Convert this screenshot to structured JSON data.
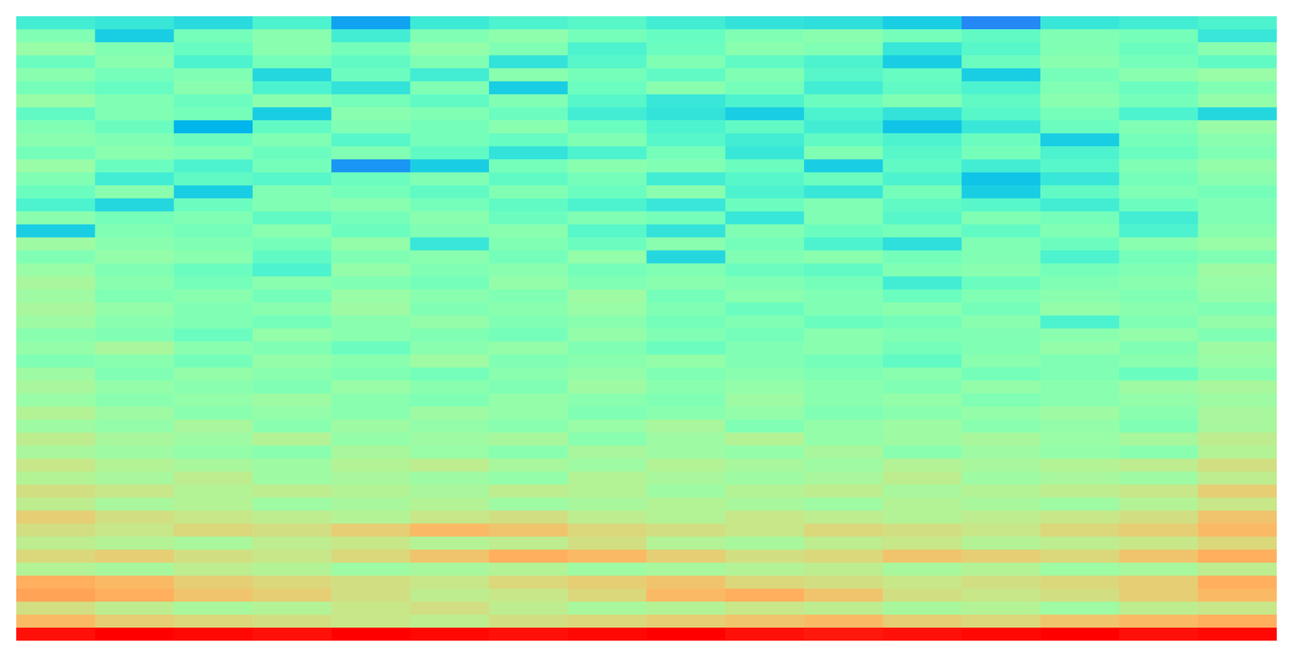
{
  "chart_data": {
    "type": "heatmap",
    "tick_labels": false,
    "zlim": [
      0,
      1
    ],
    "cells": [
      [
        0.38,
        0.36,
        0.33,
        0.4,
        0.22,
        0.37,
        0.4,
        0.42,
        0.38,
        0.35,
        0.34,
        0.3,
        0.18,
        0.36,
        0.38,
        0.4
      ],
      [
        0.5,
        0.3,
        0.48,
        0.52,
        0.38,
        0.5,
        0.53,
        0.48,
        0.45,
        0.5,
        0.52,
        0.48,
        0.44,
        0.5,
        0.48,
        0.36
      ],
      [
        0.55,
        0.5,
        0.45,
        0.52,
        0.48,
        0.54,
        0.5,
        0.4,
        0.46,
        0.52,
        0.5,
        0.36,
        0.42,
        0.5,
        0.46,
        0.52
      ],
      [
        0.46,
        0.52,
        0.4,
        0.48,
        0.44,
        0.5,
        0.35,
        0.42,
        0.5,
        0.44,
        0.4,
        0.3,
        0.46,
        0.52,
        0.48,
        0.44
      ],
      [
        0.52,
        0.48,
        0.5,
        0.32,
        0.46,
        0.38,
        0.52,
        0.48,
        0.44,
        0.5,
        0.42,
        0.45,
        0.3,
        0.48,
        0.52,
        0.55
      ],
      [
        0.48,
        0.45,
        0.52,
        0.4,
        0.35,
        0.5,
        0.3,
        0.46,
        0.52,
        0.48,
        0.38,
        0.44,
        0.4,
        0.5,
        0.46,
        0.5
      ],
      [
        0.55,
        0.5,
        0.46,
        0.52,
        0.48,
        0.44,
        0.5,
        0.42,
        0.36,
        0.4,
        0.46,
        0.5,
        0.44,
        0.52,
        0.48,
        0.54
      ],
      [
        0.44,
        0.5,
        0.48,
        0.3,
        0.52,
        0.5,
        0.46,
        0.38,
        0.35,
        0.3,
        0.4,
        0.35,
        0.42,
        0.48,
        0.4,
        0.32
      ],
      [
        0.5,
        0.46,
        0.25,
        0.44,
        0.5,
        0.48,
        0.52,
        0.46,
        0.4,
        0.44,
        0.38,
        0.28,
        0.36,
        0.46,
        0.5,
        0.55
      ],
      [
        0.52,
        0.5,
        0.46,
        0.5,
        0.42,
        0.48,
        0.45,
        0.5,
        0.42,
        0.38,
        0.44,
        0.4,
        0.46,
        0.3,
        0.48,
        0.52
      ],
      [
        0.48,
        0.52,
        0.5,
        0.46,
        0.5,
        0.44,
        0.35,
        0.4,
        0.48,
        0.36,
        0.5,
        0.42,
        0.48,
        0.4,
        0.46,
        0.5
      ],
      [
        0.55,
        0.46,
        0.4,
        0.48,
        0.2,
        0.3,
        0.48,
        0.52,
        0.5,
        0.46,
        0.3,
        0.44,
        0.38,
        0.42,
        0.5,
        0.54
      ],
      [
        0.5,
        0.38,
        0.44,
        0.42,
        0.46,
        0.5,
        0.44,
        0.48,
        0.38,
        0.42,
        0.46,
        0.4,
        0.28,
        0.36,
        0.48,
        0.52
      ],
      [
        0.46,
        0.52,
        0.3,
        0.5,
        0.48,
        0.44,
        0.5,
        0.46,
        0.52,
        0.4,
        0.36,
        0.48,
        0.3,
        0.44,
        0.5,
        0.48
      ],
      [
        0.4,
        0.32,
        0.46,
        0.5,
        0.52,
        0.48,
        0.44,
        0.4,
        0.36,
        0.46,
        0.5,
        0.44,
        0.42,
        0.38,
        0.46,
        0.5
      ],
      [
        0.52,
        0.48,
        0.5,
        0.44,
        0.48,
        0.52,
        0.46,
        0.5,
        0.48,
        0.36,
        0.5,
        0.42,
        0.5,
        0.48,
        0.38,
        0.5
      ],
      [
        0.3,
        0.5,
        0.48,
        0.52,
        0.46,
        0.5,
        0.52,
        0.42,
        0.35,
        0.5,
        0.46,
        0.48,
        0.44,
        0.5,
        0.4,
        0.52
      ],
      [
        0.56,
        0.52,
        0.5,
        0.48,
        0.54,
        0.36,
        0.5,
        0.46,
        0.52,
        0.48,
        0.4,
        0.34,
        0.5,
        0.46,
        0.52,
        0.55
      ],
      [
        0.5,
        0.54,
        0.52,
        0.44,
        0.5,
        0.52,
        0.48,
        0.54,
        0.32,
        0.5,
        0.52,
        0.48,
        0.5,
        0.4,
        0.48,
        0.5
      ],
      [
        0.55,
        0.5,
        0.46,
        0.4,
        0.54,
        0.5,
        0.52,
        0.48,
        0.5,
        0.46,
        0.44,
        0.5,
        0.52,
        0.48,
        0.5,
        0.56
      ],
      [
        0.58,
        0.52,
        0.48,
        0.52,
        0.5,
        0.48,
        0.54,
        0.5,
        0.52,
        0.5,
        0.48,
        0.38,
        0.46,
        0.5,
        0.52,
        0.55
      ],
      [
        0.56,
        0.5,
        0.52,
        0.48,
        0.55,
        0.52,
        0.5,
        0.56,
        0.48,
        0.52,
        0.5,
        0.46,
        0.5,
        0.52,
        0.5,
        0.54
      ],
      [
        0.58,
        0.54,
        0.5,
        0.52,
        0.56,
        0.5,
        0.52,
        0.55,
        0.5,
        0.46,
        0.5,
        0.52,
        0.48,
        0.54,
        0.52,
        0.5
      ],
      [
        0.56,
        0.52,
        0.5,
        0.48,
        0.52,
        0.54,
        0.5,
        0.52,
        0.48,
        0.5,
        0.46,
        0.48,
        0.52,
        0.4,
        0.5,
        0.54
      ],
      [
        0.52,
        0.5,
        0.46,
        0.54,
        0.52,
        0.5,
        0.48,
        0.54,
        0.5,
        0.48,
        0.52,
        0.5,
        0.5,
        0.52,
        0.54,
        0.5
      ],
      [
        0.54,
        0.58,
        0.52,
        0.5,
        0.46,
        0.52,
        0.54,
        0.5,
        0.46,
        0.5,
        0.52,
        0.48,
        0.5,
        0.54,
        0.5,
        0.56
      ],
      [
        0.5,
        0.52,
        0.48,
        0.54,
        0.52,
        0.56,
        0.5,
        0.52,
        0.54,
        0.5,
        0.48,
        0.44,
        0.52,
        0.5,
        0.52,
        0.55
      ],
      [
        0.56,
        0.5,
        0.54,
        0.52,
        0.5,
        0.48,
        0.52,
        0.54,
        0.5,
        0.52,
        0.5,
        0.52,
        0.48,
        0.5,
        0.46,
        0.52
      ],
      [
        0.58,
        0.54,
        0.52,
        0.5,
        0.55,
        0.52,
        0.5,
        0.56,
        0.52,
        0.54,
        0.52,
        0.5,
        0.54,
        0.52,
        0.56,
        0.58
      ],
      [
        0.55,
        0.52,
        0.54,
        0.56,
        0.52,
        0.5,
        0.54,
        0.52,
        0.5,
        0.56,
        0.52,
        0.54,
        0.5,
        0.52,
        0.54,
        0.56
      ],
      [
        0.6,
        0.56,
        0.52,
        0.54,
        0.52,
        0.56,
        0.54,
        0.5,
        0.52,
        0.54,
        0.5,
        0.52,
        0.54,
        0.56,
        0.52,
        0.58
      ],
      [
        0.56,
        0.54,
        0.58,
        0.52,
        0.56,
        0.54,
        0.52,
        0.55,
        0.58,
        0.5,
        0.54,
        0.56,
        0.52,
        0.54,
        0.5,
        0.58
      ],
      [
        0.62,
        0.58,
        0.56,
        0.6,
        0.54,
        0.56,
        0.58,
        0.52,
        0.56,
        0.6,
        0.54,
        0.56,
        0.58,
        0.55,
        0.58,
        0.62
      ],
      [
        0.58,
        0.56,
        0.54,
        0.52,
        0.58,
        0.55,
        0.52,
        0.58,
        0.56,
        0.54,
        0.58,
        0.52,
        0.56,
        0.54,
        0.52,
        0.6
      ],
      [
        0.64,
        0.6,
        0.58,
        0.56,
        0.6,
        0.62,
        0.58,
        0.56,
        0.6,
        0.58,
        0.56,
        0.6,
        0.58,
        0.6,
        0.62,
        0.66
      ],
      [
        0.6,
        0.58,
        0.62,
        0.56,
        0.58,
        0.56,
        0.54,
        0.6,
        0.58,
        0.56,
        0.58,
        0.62,
        0.56,
        0.58,
        0.56,
        0.62
      ],
      [
        0.66,
        0.64,
        0.6,
        0.62,
        0.6,
        0.58,
        0.62,
        0.6,
        0.56,
        0.6,
        0.62,
        0.58,
        0.6,
        0.62,
        0.64,
        0.7
      ],
      [
        0.62,
        0.58,
        0.6,
        0.56,
        0.58,
        0.6,
        0.56,
        0.58,
        0.6,
        0.58,
        0.56,
        0.6,
        0.58,
        0.56,
        0.6,
        0.64
      ],
      [
        0.7,
        0.66,
        0.64,
        0.62,
        0.6,
        0.64,
        0.66,
        0.62,
        0.6,
        0.64,
        0.62,
        0.6,
        0.62,
        0.64,
        0.66,
        0.72
      ],
      [
        0.66,
        0.64,
        0.68,
        0.66,
        0.7,
        0.74,
        0.72,
        0.68,
        0.66,
        0.64,
        0.68,
        0.66,
        0.64,
        0.68,
        0.7,
        0.74
      ],
      [
        0.62,
        0.6,
        0.58,
        0.62,
        0.64,
        0.6,
        0.62,
        0.66,
        0.6,
        0.58,
        0.62,
        0.64,
        0.6,
        0.62,
        0.64,
        0.68
      ],
      [
        0.68,
        0.7,
        0.66,
        0.64,
        0.68,
        0.72,
        0.76,
        0.74,
        0.7,
        0.66,
        0.68,
        0.72,
        0.7,
        0.68,
        0.72,
        0.76
      ],
      [
        0.6,
        0.58,
        0.62,
        0.6,
        0.56,
        0.58,
        0.6,
        0.56,
        0.58,
        0.6,
        0.62,
        0.58,
        0.6,
        0.56,
        0.58,
        0.62
      ],
      [
        0.76,
        0.74,
        0.7,
        0.68,
        0.66,
        0.64,
        0.68,
        0.7,
        0.72,
        0.68,
        0.66,
        0.64,
        0.66,
        0.68,
        0.7,
        0.76
      ],
      [
        0.78,
        0.76,
        0.72,
        0.7,
        0.66,
        0.62,
        0.64,
        0.68,
        0.74,
        0.76,
        0.72,
        0.66,
        0.64,
        0.66,
        0.7,
        0.74
      ],
      [
        0.66,
        0.62,
        0.58,
        0.6,
        0.64,
        0.66,
        0.62,
        0.58,
        0.6,
        0.64,
        0.62,
        0.58,
        0.6,
        0.56,
        0.62,
        0.64
      ],
      [
        0.74,
        0.7,
        0.68,
        0.66,
        0.64,
        0.62,
        0.66,
        0.68,
        0.7,
        0.72,
        0.74,
        0.7,
        0.68,
        0.72,
        0.74,
        0.76
      ],
      [
        0.98,
        1,
        0.99,
        0.98,
        1,
        0.99,
        0.98,
        0.99,
        1,
        0.98,
        0.97,
        0.98,
        0.99,
        1,
        0.98,
        0.99
      ]
    ]
  }
}
